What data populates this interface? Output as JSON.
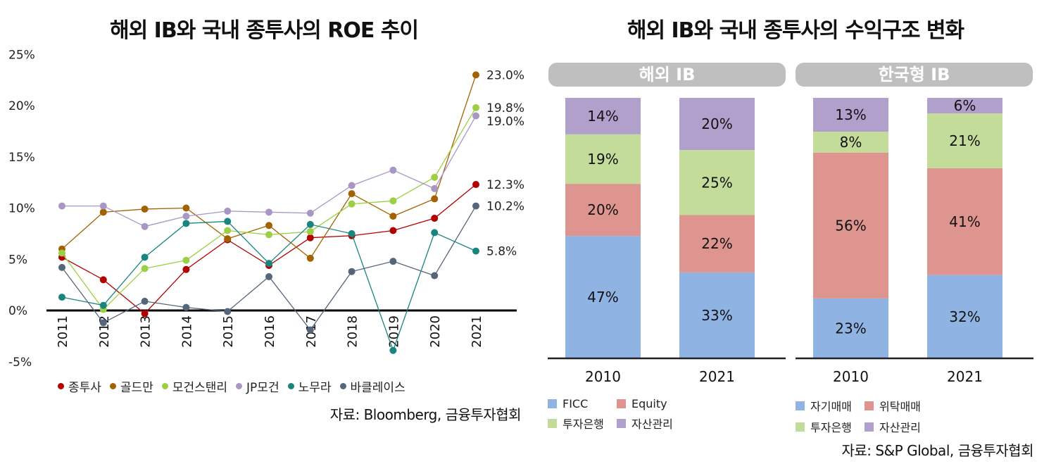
{
  "left_chart": {
    "title": "해외 IB와 국내 종투사의 ROE 추이",
    "source": "자료: Bloomberg, 금융투자협회"
  },
  "right_chart": {
    "title": "해외 IB와 국내 종투사의 수익구조 변화",
    "panel_left_label": "해외 IB",
    "panel_right_label": "한국형 IB",
    "source": "자료: S&P Global, 금융투자협회"
  },
  "chart_data": [
    {
      "type": "line",
      "title": "해외 IB와 국내 종투사의 ROE 추이",
      "x": [
        "2011",
        "2012",
        "2013",
        "2014",
        "2015",
        "2016",
        "2017",
        "2018",
        "2019",
        "2020",
        "2021"
      ],
      "ylim": [
        -5,
        25
      ],
      "yticks": [
        "25%",
        "20%",
        "15%",
        "10%",
        "5%",
        "0%",
        "-5%"
      ],
      "grid": false,
      "legend_position": "bottom",
      "series": [
        {
          "name": "종투사",
          "color": "#b30000",
          "values": [
            5.2,
            3.0,
            -0.3,
            4.0,
            6.9,
            4.4,
            7.1,
            7.3,
            7.8,
            9.0,
            12.3
          ],
          "end_label": "12.3%"
        },
        {
          "name": "골드만",
          "color": "#a36200",
          "values": [
            6.0,
            9.6,
            9.9,
            10.0,
            7.0,
            8.3,
            5.1,
            11.4,
            9.2,
            10.9,
            23.0
          ],
          "end_label": "23.0%"
        },
        {
          "name": "모건스탠리",
          "color": "#9cd044",
          "values": [
            5.6,
            0.1,
            4.1,
            4.9,
            7.8,
            7.4,
            7.7,
            10.4,
            10.7,
            13.0,
            19.8
          ],
          "end_label": "19.8%"
        },
        {
          "name": "JP모건",
          "color": "#a897c4",
          "values": [
            10.2,
            10.2,
            8.2,
            9.2,
            9.7,
            9.6,
            9.5,
            12.2,
            13.7,
            11.9,
            19.0
          ],
          "end_label": "19.0%"
        },
        {
          "name": "노무라",
          "color": "#18867f",
          "values": [
            1.3,
            0.5,
            5.2,
            8.5,
            8.7,
            4.6,
            8.4,
            7.5,
            -3.9,
            7.6,
            5.8
          ],
          "end_label": "5.8%"
        },
        {
          "name": "바클레이스",
          "color": "#56667a",
          "values": [
            4.2,
            -1.2,
            0.9,
            0.3,
            -0.1,
            3.3,
            -1.9,
            3.8,
            4.8,
            3.4,
            10.2
          ],
          "end_label": "10.2%"
        }
      ]
    },
    {
      "type": "bar",
      "stacked": true,
      "title": "해외 IB",
      "categories": [
        "2010",
        "2021"
      ],
      "ylim": [
        0,
        100
      ],
      "legend_position": "bottom",
      "series": [
        {
          "name": "FICC",
          "color": "#8fb4e3",
          "values": [
            47,
            33
          ]
        },
        {
          "name": "Equity",
          "color": "#de9590",
          "values": [
            20,
            22
          ]
        },
        {
          "name": "투자은행",
          "color": "#c3dc9a",
          "values": [
            19,
            25
          ]
        },
        {
          "name": "자산관리",
          "color": "#b1a0cc",
          "values": [
            14,
            20
          ]
        }
      ]
    },
    {
      "type": "bar",
      "stacked": true,
      "title": "한국형 IB",
      "categories": [
        "2010",
        "2021"
      ],
      "ylim": [
        0,
        100
      ],
      "legend_position": "bottom",
      "series": [
        {
          "name": "자기매매",
          "color": "#8fb4e3",
          "values": [
            23,
            32
          ]
        },
        {
          "name": "위탁매매",
          "color": "#de9590",
          "values": [
            56,
            41
          ]
        },
        {
          "name": "투자은행",
          "color": "#c3dc9a",
          "values": [
            8,
            21
          ]
        },
        {
          "name": "자산관리",
          "color": "#b1a0cc",
          "values": [
            13,
            6
          ]
        }
      ]
    }
  ]
}
